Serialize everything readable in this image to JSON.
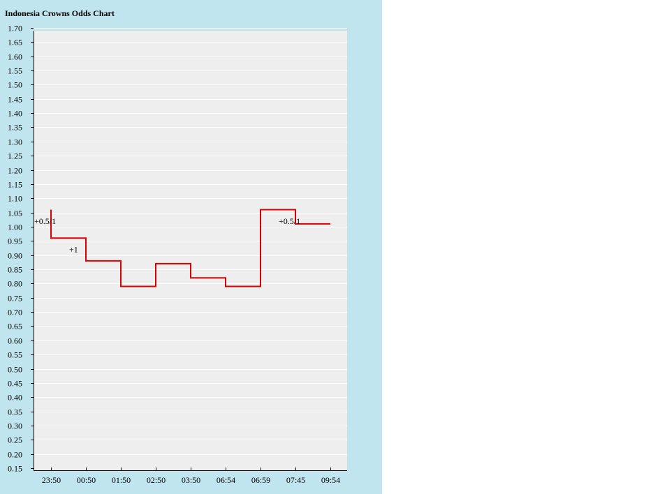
{
  "title": "Indonesia Crowns Odds Chart",
  "chart_data": {
    "type": "line",
    "step": true,
    "title": "Indonesia Crowns Odds Chart",
    "xlabel": "",
    "ylabel": "",
    "categories": [
      "23:50",
      "00:50",
      "01:50",
      "02:50",
      "03:50",
      "06:54",
      "06:59",
      "07:45",
      "09:54"
    ],
    "ylim": [
      0.15,
      1.7
    ],
    "ytick_step": 0.05,
    "grid": true,
    "series": [
      {
        "color": "#dd0000",
        "start_value": 1.06,
        "values": [
          0.96,
          0.88,
          0.79,
          0.87,
          0.82,
          0.79,
          1.06,
          1.01,
          1.01
        ]
      }
    ],
    "annotations": [
      {
        "text": "+0.5/1",
        "category_index": 0,
        "value": 1.02
      },
      {
        "text": "+1",
        "category_index": 1,
        "value": 0.92
      },
      {
        "text": "+0.5/1",
        "category_index": 7,
        "value": 1.02
      }
    ],
    "colors": {
      "background": "#c1e5ef",
      "plot_area": "#eeeeee",
      "line": "#dd0000"
    }
  }
}
